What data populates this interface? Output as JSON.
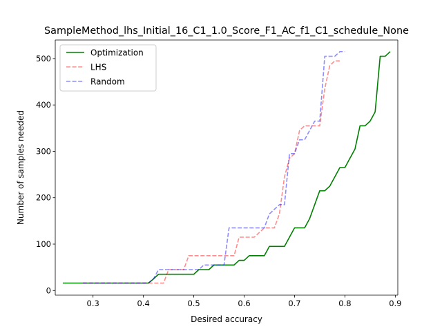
{
  "chart_data": {
    "type": "line",
    "title": "SampleMethod_lhs_Initial_16_C1_1.0_Score_F1_AC_f1_C1_schedule_None",
    "xlabel": "Desired accuracy",
    "ylabel": "Number of samples needed",
    "xlim": [
      0.225,
      0.905
    ],
    "ylim": [
      -10,
      540
    ],
    "xticks": [
      0.3,
      0.4,
      0.5,
      0.6,
      0.7,
      0.8,
      0.9
    ],
    "xtick_labels": [
      "0.3",
      "0.4",
      "0.5",
      "0.6",
      "0.7",
      "0.8",
      "0.9"
    ],
    "yticks": [
      0,
      100,
      200,
      300,
      400,
      500
    ],
    "ytick_labels": [
      "0",
      "100",
      "200",
      "300",
      "400",
      "500"
    ],
    "grid": false,
    "legend_position": "upper-left",
    "series": [
      {
        "name": "Optimization",
        "color": "#008000",
        "style": "solid",
        "opacity": 1.0,
        "x": [
          0.24,
          0.41,
          0.42,
          0.43,
          0.44,
          0.45,
          0.46,
          0.47,
          0.48,
          0.49,
          0.5,
          0.51,
          0.52,
          0.53,
          0.54,
          0.55,
          0.56,
          0.57,
          0.58,
          0.59,
          0.6,
          0.61,
          0.62,
          0.63,
          0.64,
          0.65,
          0.66,
          0.67,
          0.68,
          0.69,
          0.7,
          0.71,
          0.72,
          0.73,
          0.74,
          0.75,
          0.76,
          0.77,
          0.78,
          0.79,
          0.8,
          0.81,
          0.82,
          0.83,
          0.84,
          0.85,
          0.86,
          0.87,
          0.88,
          0.89
        ],
        "y": [
          16,
          16,
          25,
          35,
          35,
          35,
          35,
          35,
          35,
          35,
          35,
          45,
          45,
          45,
          55,
          55,
          55,
          55,
          55,
          65,
          65,
          75,
          75,
          75,
          75,
          95,
          95,
          95,
          95,
          115,
          135,
          135,
          135,
          155,
          185,
          215,
          215,
          225,
          245,
          265,
          265,
          285,
          305,
          355,
          355,
          365,
          385,
          505,
          505,
          515
        ]
      },
      {
        "name": "LHS",
        "color": "#ff0000",
        "style": "dashed",
        "opacity": 0.45,
        "x": [
          0.28,
          0.43,
          0.44,
          0.45,
          0.46,
          0.47,
          0.48,
          0.49,
          0.5,
          0.51,
          0.52,
          0.53,
          0.54,
          0.55,
          0.56,
          0.57,
          0.58,
          0.59,
          0.6,
          0.61,
          0.62,
          0.63,
          0.64,
          0.65,
          0.66,
          0.67,
          0.68,
          0.69,
          0.7,
          0.71,
          0.72,
          0.73,
          0.74,
          0.75,
          0.76,
          0.77,
          0.78,
          0.79
        ],
        "y": [
          16,
          16,
          16,
          45,
          45,
          45,
          45,
          75,
          75,
          75,
          75,
          75,
          75,
          75,
          75,
          75,
          75,
          115,
          115,
          115,
          115,
          125,
          135,
          135,
          135,
          165,
          245,
          285,
          295,
          345,
          355,
          355,
          355,
          355,
          435,
          485,
          495,
          495
        ]
      },
      {
        "name": "Random",
        "color": "#0000ff",
        "style": "dashed",
        "opacity": 0.45,
        "x": [
          0.28,
          0.41,
          0.42,
          0.43,
          0.44,
          0.45,
          0.46,
          0.47,
          0.48,
          0.49,
          0.5,
          0.51,
          0.52,
          0.53,
          0.54,
          0.55,
          0.56,
          0.57,
          0.58,
          0.59,
          0.6,
          0.61,
          0.62,
          0.63,
          0.64,
          0.65,
          0.66,
          0.67,
          0.68,
          0.69,
          0.7,
          0.71,
          0.72,
          0.73,
          0.74,
          0.75,
          0.76,
          0.77,
          0.78,
          0.79,
          0.8
        ],
        "y": [
          16,
          16,
          25,
          45,
          45,
          45,
          45,
          45,
          45,
          45,
          45,
          45,
          55,
          55,
          55,
          55,
          55,
          135,
          135,
          135,
          135,
          135,
          135,
          135,
          135,
          165,
          175,
          185,
          185,
          295,
          295,
          325,
          325,
          345,
          365,
          365,
          505,
          505,
          505,
          515,
          515
        ]
      }
    ]
  }
}
